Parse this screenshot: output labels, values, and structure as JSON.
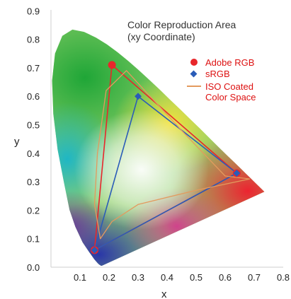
{
  "chart_data": {
    "type": "scatter",
    "title": "Color Reproduction Area",
    "subtitle": "(xy Coordinate)",
    "xlabel": "x",
    "ylabel": "y",
    "xlim": [
      0.0,
      0.85
    ],
    "ylim": [
      0.0,
      0.9
    ],
    "x_ticks": [
      "0.1",
      "0.2",
      "0.3",
      "0.4",
      "0.5",
      "0.6",
      "0.7",
      "0.8"
    ],
    "y_ticks": [
      "0.0",
      "0.1",
      "0.2",
      "0.3",
      "0.4",
      "0.5",
      "0.6",
      "0.7",
      "0.8",
      "0.9"
    ],
    "grid": false,
    "legend_position": "top-right",
    "spectral_locus": [
      [
        0.175,
        0.005
      ],
      [
        0.172,
        0.005
      ],
      [
        0.17,
        0.007
      ],
      [
        0.166,
        0.009
      ],
      [
        0.161,
        0.014
      ],
      [
        0.149,
        0.028
      ],
      [
        0.131,
        0.054
      ],
      [
        0.109,
        0.087
      ],
      [
        0.084,
        0.142
      ],
      [
        0.064,
        0.201
      ],
      [
        0.045,
        0.295
      ],
      [
        0.023,
        0.413
      ],
      [
        0.008,
        0.538
      ],
      [
        0.004,
        0.655
      ],
      [
        0.014,
        0.75
      ],
      [
        0.039,
        0.812
      ],
      [
        0.074,
        0.834
      ],
      [
        0.114,
        0.826
      ],
      [
        0.155,
        0.806
      ],
      [
        0.193,
        0.782
      ],
      [
        0.23,
        0.754
      ],
      [
        0.266,
        0.724
      ],
      [
        0.302,
        0.692
      ],
      [
        0.337,
        0.659
      ],
      [
        0.373,
        0.625
      ],
      [
        0.408,
        0.59
      ],
      [
        0.444,
        0.555
      ],
      [
        0.479,
        0.52
      ],
      [
        0.513,
        0.487
      ],
      [
        0.547,
        0.452
      ],
      [
        0.579,
        0.42
      ],
      [
        0.608,
        0.391
      ],
      [
        0.633,
        0.367
      ],
      [
        0.655,
        0.345
      ],
      [
        0.673,
        0.327
      ],
      [
        0.688,
        0.312
      ],
      [
        0.7,
        0.3
      ],
      [
        0.735,
        0.265
      ]
    ],
    "series": [
      {
        "name": "Adobe RGB",
        "color": "#e8262b",
        "marker": "circle",
        "points": [
          [
            0.64,
            0.33
          ],
          [
            0.21,
            0.71
          ],
          [
            0.15,
            0.06
          ]
        ]
      },
      {
        "name": "sRGB",
        "color": "#2a5cb8",
        "marker": "diamond",
        "points": [
          [
            0.64,
            0.33
          ],
          [
            0.3,
            0.6
          ],
          [
            0.15,
            0.06
          ]
        ]
      },
      {
        "name": "ISO Coated Color Space",
        "color": "#e39a5e",
        "marker": "line",
        "points": [
          [
            0.685,
            0.31
          ],
          [
            0.6,
            0.32
          ],
          [
            0.45,
            0.48
          ],
          [
            0.26,
            0.69
          ],
          [
            0.19,
            0.62
          ],
          [
            0.16,
            0.4
          ],
          [
            0.15,
            0.22
          ],
          [
            0.17,
            0.1
          ],
          [
            0.21,
            0.16
          ],
          [
            0.3,
            0.22
          ],
          [
            0.5,
            0.27
          ],
          [
            0.685,
            0.31
          ]
        ]
      }
    ],
    "legend": [
      {
        "label": "Adobe RGB",
        "marker": "circle",
        "color": "#e8262b"
      },
      {
        "label": "sRGB",
        "marker": "diamond",
        "color": "#2a5cb8"
      },
      {
        "label": "ISO Coated\nColor Space",
        "marker": "line",
        "color": "#e39a5e"
      }
    ]
  }
}
